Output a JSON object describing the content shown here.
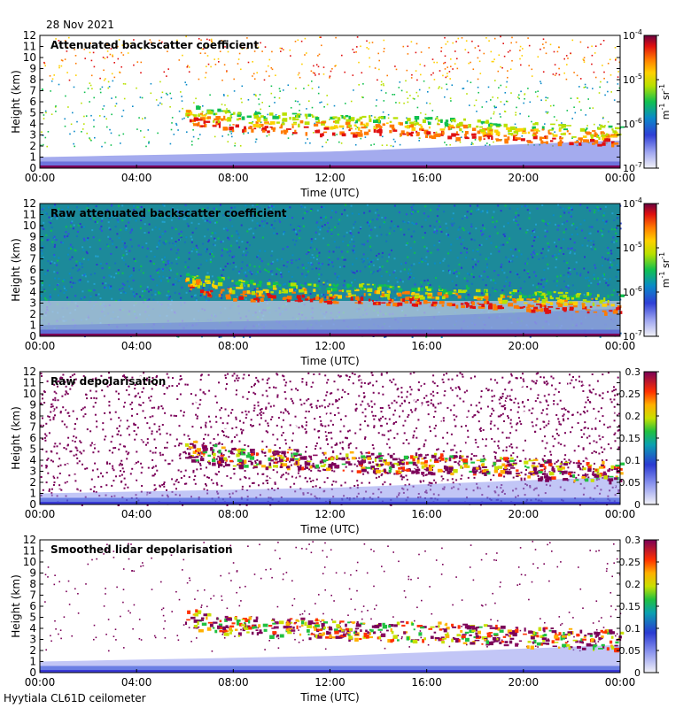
{
  "header": {
    "date": "28 Nov 2021"
  },
  "footer": {
    "instrument": "Hyytiala CL61D ceilometer"
  },
  "chart_data": [
    {
      "type": "heatmap",
      "title": "Attenuated backscatter coefficient",
      "xlabel": "Time (UTC)",
      "ylabel": "Height (km)",
      "xticks": [
        "00:00",
        "04:00",
        "08:00",
        "12:00",
        "16:00",
        "20:00",
        "00:00"
      ],
      "yticks": [
        "0",
        "1",
        "2",
        "3",
        "4",
        "5",
        "6",
        "7",
        "8",
        "9",
        "10",
        "11",
        "12"
      ],
      "xlim_hours": [
        0,
        24
      ],
      "ylim_km": [
        0,
        12
      ],
      "colorbar": {
        "scale": "log",
        "range": [
          1e-07,
          0.0001
        ],
        "ticks": [
          {
            "base": "10",
            "exp": "-4"
          },
          {
            "base": "10",
            "exp": "-5"
          },
          {
            "base": "10",
            "exp": "-6"
          },
          {
            "base": "10",
            "exp": "-7"
          }
        ],
        "unit": {
          "m": "m",
          "m_exp": "-1",
          "sr": "sr",
          "sr_exp": "-1"
        }
      },
      "features": {
        "cloud_layer_km": [
          [
            6,
            5.0
          ],
          [
            8,
            4.3
          ],
          [
            12,
            4.0
          ],
          [
            16,
            3.8
          ],
          [
            20,
            3.3
          ],
          [
            24,
            3.0
          ]
        ],
        "boundary_layer_top_km": [
          [
            0,
            1.0
          ],
          [
            12,
            1.5
          ],
          [
            18,
            2.0
          ],
          [
            24,
            2.5
          ]
        ],
        "high_sparse_signal": true
      }
    },
    {
      "type": "heatmap",
      "title": "Raw attenuated backscatter coefficient",
      "xlabel": "Time (UTC)",
      "ylabel": "Height (km)",
      "xticks": [
        "00:00",
        "04:00",
        "08:00",
        "12:00",
        "16:00",
        "20:00",
        "00:00"
      ],
      "yticks": [
        "0",
        "1",
        "2",
        "3",
        "4",
        "5",
        "6",
        "7",
        "8",
        "9",
        "10",
        "11",
        "12"
      ],
      "xlim_hours": [
        0,
        24
      ],
      "ylim_km": [
        0,
        12
      ],
      "colorbar": {
        "scale": "log",
        "range": [
          1e-07,
          0.0001
        ],
        "ticks": [
          {
            "base": "10",
            "exp": "-4"
          },
          {
            "base": "10",
            "exp": "-5"
          },
          {
            "base": "10",
            "exp": "-6"
          },
          {
            "base": "10",
            "exp": "-7"
          }
        ],
        "unit": {
          "m": "m",
          "m_exp": "-1",
          "sr": "sr",
          "sr_exp": "-1"
        }
      },
      "features": {
        "cloud_layer_km": [
          [
            6,
            5.0
          ],
          [
            8,
            4.3
          ],
          [
            12,
            4.0
          ],
          [
            16,
            3.8
          ],
          [
            20,
            3.3
          ],
          [
            24,
            3.0
          ]
        ],
        "noise_background": true
      }
    },
    {
      "type": "heatmap",
      "title": "Raw depolarisation",
      "xlabel": "Time (UTC)",
      "ylabel": "Height (km)",
      "xticks": [
        "00:00",
        "04:00",
        "08:00",
        "12:00",
        "16:00",
        "20:00",
        "00:00"
      ],
      "yticks": [
        "0",
        "1",
        "2",
        "3",
        "4",
        "5",
        "6",
        "7",
        "8",
        "9",
        "10",
        "11",
        "12"
      ],
      "xlim_hours": [
        0,
        24
      ],
      "ylim_km": [
        0,
        12
      ],
      "colorbar": {
        "scale": "linear",
        "range": [
          0,
          0.3
        ],
        "ticks": [
          "0.3",
          "0.25",
          "0.2",
          "0.15",
          "0.1",
          "0.05",
          "0"
        ]
      },
      "features": {
        "cloud_layer_km": [
          [
            6,
            5.0
          ],
          [
            8,
            4.3
          ],
          [
            12,
            4.0
          ],
          [
            16,
            3.8
          ],
          [
            20,
            3.3
          ],
          [
            24,
            3.0
          ]
        ],
        "noise_background": true
      }
    },
    {
      "type": "heatmap",
      "title": "Smoothed lidar depolarisation",
      "xlabel": "Time (UTC)",
      "ylabel": "Height (km)",
      "xticks": [
        "00:00",
        "04:00",
        "08:00",
        "12:00",
        "16:00",
        "20:00",
        "00:00"
      ],
      "yticks": [
        "0",
        "1",
        "2",
        "3",
        "4",
        "5",
        "6",
        "7",
        "8",
        "9",
        "10",
        "11",
        "12"
      ],
      "xlim_hours": [
        0,
        24
      ],
      "ylim_km": [
        0,
        12
      ],
      "colorbar": {
        "scale": "linear",
        "range": [
          0,
          0.3
        ],
        "ticks": [
          "0.3",
          "0.25",
          "0.2",
          "0.15",
          "0.1",
          "0.05",
          "0"
        ]
      },
      "features": {
        "cloud_layer_km": [
          [
            6,
            5.0
          ],
          [
            8,
            4.3
          ],
          [
            12,
            4.0
          ],
          [
            16,
            3.8
          ],
          [
            20,
            3.3
          ],
          [
            24,
            3.0
          ]
        ],
        "sparse_background": true
      }
    }
  ]
}
